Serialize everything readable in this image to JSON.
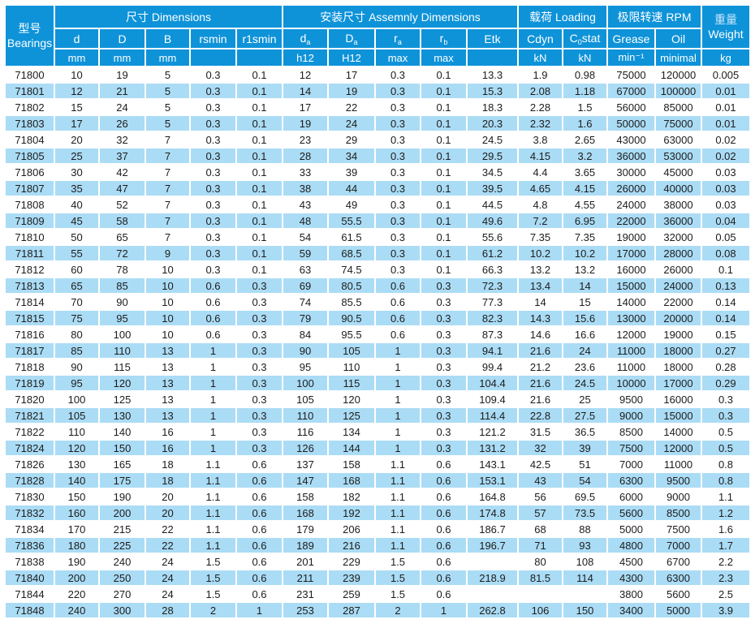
{
  "colors": {
    "header_blue": "#0e93d9",
    "row_alt_blue": "#abdcf5",
    "grid_white": "#ffffff",
    "body_text": "#1c1c1c",
    "header_text": "#ffffff"
  },
  "table": {
    "bearings_header": {
      "zh": "型号",
      "en": "Bearings"
    },
    "groups": [
      {
        "label": "尺寸 Dimensions"
      },
      {
        "label": "安装尺寸 Assemnly Dimensions"
      },
      {
        "label": "载荷 Loading"
      },
      {
        "label": "极限转速 RPM"
      }
    ],
    "weight_header": {
      "zh": "重量",
      "en": "Weight",
      "unit": "kg"
    },
    "columns": [
      {
        "pre": "d"
      },
      {
        "pre": "D"
      },
      {
        "pre": "B"
      },
      {
        "pre": "rsmin"
      },
      {
        "pre": "r1smin"
      },
      {
        "pre": "d",
        "sub": "a"
      },
      {
        "pre": "D",
        "sub": "a"
      },
      {
        "pre": "r",
        "sub": "a"
      },
      {
        "pre": "r",
        "sub": "b"
      },
      {
        "pre": "Etk"
      },
      {
        "pre": "Cdyn"
      },
      {
        "pre": "C",
        "sub": "0",
        "post": "stat"
      },
      {
        "pre": "Grease"
      },
      {
        "pre": "Oil"
      }
    ],
    "units": [
      "mm",
      "mm",
      "mm",
      "",
      "",
      "h12",
      "H12",
      "max",
      "max",
      "",
      "kN",
      "kN",
      "min⁻¹",
      "minimal"
    ],
    "rows": [
      [
        "71800",
        10,
        19,
        5,
        0.3,
        0.1,
        12,
        17,
        0.3,
        0.1,
        13.3,
        1.9,
        0.98,
        75000,
        120000,
        0.005
      ],
      [
        "71801",
        12,
        21,
        5,
        0.3,
        0.1,
        14,
        19,
        0.3,
        0.1,
        15.3,
        2.08,
        1.18,
        67000,
        100000,
        0.01
      ],
      [
        "71802",
        15,
        24,
        5,
        0.3,
        0.1,
        17,
        22,
        0.3,
        0.1,
        18.3,
        2.28,
        1.5,
        56000,
        85000,
        0.01
      ],
      [
        "71803",
        17,
        26,
        5,
        0.3,
        0.1,
        19,
        24,
        0.3,
        0.1,
        20.3,
        2.32,
        1.6,
        50000,
        75000,
        0.01
      ],
      [
        "71804",
        20,
        32,
        7,
        0.3,
        0.1,
        23,
        29,
        0.3,
        0.1,
        24.5,
        3.8,
        2.65,
        43000,
        63000,
        0.02
      ],
      [
        "71805",
        25,
        37,
        7,
        0.3,
        0.1,
        28,
        34,
        0.3,
        0.1,
        29.5,
        4.15,
        3.2,
        36000,
        53000,
        0.02
      ],
      [
        "71806",
        30,
        42,
        7,
        0.3,
        0.1,
        33,
        39,
        0.3,
        0.1,
        34.5,
        4.4,
        3.65,
        30000,
        45000,
        0.03
      ],
      [
        "71807",
        35,
        47,
        7,
        0.3,
        0.1,
        38,
        44,
        0.3,
        0.1,
        39.5,
        4.65,
        4.15,
        26000,
        40000,
        0.03
      ],
      [
        "71808",
        40,
        52,
        7,
        0.3,
        0.1,
        43,
        49,
        0.3,
        0.1,
        44.5,
        4.8,
        4.55,
        24000,
        38000,
        0.03
      ],
      [
        "71809",
        45,
        58,
        7,
        0.3,
        0.1,
        48,
        55.5,
        0.3,
        0.1,
        49.6,
        7.2,
        6.95,
        22000,
        36000,
        0.04
      ],
      [
        "71810",
        50,
        65,
        7,
        0.3,
        0.1,
        54,
        61.5,
        0.3,
        0.1,
        55.6,
        7.35,
        7.35,
        19000,
        32000,
        0.05
      ],
      [
        "71811",
        55,
        72,
        9,
        0.3,
        0.1,
        59,
        68.5,
        0.3,
        0.1,
        61.2,
        10.2,
        10.2,
        17000,
        28000,
        0.08
      ],
      [
        "71812",
        60,
        78,
        10,
        0.3,
        0.1,
        63,
        74.5,
        0.3,
        0.1,
        66.3,
        13.2,
        13.2,
        16000,
        26000,
        0.1
      ],
      [
        "71813",
        65,
        85,
        10,
        0.6,
        0.3,
        69,
        80.5,
        0.6,
        0.3,
        72.3,
        13.4,
        14,
        15000,
        24000,
        0.13
      ],
      [
        "71814",
        70,
        90,
        10,
        0.6,
        0.3,
        74,
        85.5,
        0.6,
        0.3,
        77.3,
        14,
        15,
        14000,
        22000,
        0.14
      ],
      [
        "71815",
        75,
        95,
        10,
        0.6,
        0.3,
        79,
        90.5,
        0.6,
        0.3,
        82.3,
        14.3,
        15.6,
        13000,
        20000,
        0.14
      ],
      [
        "71816",
        80,
        100,
        10,
        0.6,
        0.3,
        84,
        95.5,
        0.6,
        0.3,
        87.3,
        14.6,
        16.6,
        12000,
        19000,
        0.15
      ],
      [
        "71817",
        85,
        110,
        13,
        1,
        0.3,
        90,
        105,
        1,
        0.3,
        94.1,
        21.6,
        24,
        11000,
        18000,
        0.27
      ],
      [
        "71818",
        90,
        115,
        13,
        1,
        0.3,
        95,
        110,
        1,
        0.3,
        99.4,
        21.2,
        23.6,
        11000,
        18000,
        0.28
      ],
      [
        "71819",
        95,
        120,
        13,
        1,
        0.3,
        100,
        115,
        1,
        0.3,
        104.4,
        21.6,
        24.5,
        10000,
        17000,
        0.29
      ],
      [
        "71820",
        100,
        125,
        13,
        1,
        0.3,
        105,
        120,
        1,
        0.3,
        109.4,
        21.6,
        25,
        9500,
        16000,
        0.3
      ],
      [
        "71821",
        105,
        130,
        13,
        1,
        0.3,
        110,
        125,
        1,
        0.3,
        114.4,
        22.8,
        27.5,
        9000,
        15000,
        0.3
      ],
      [
        "71822",
        110,
        140,
        16,
        1,
        0.3,
        116,
        134,
        1,
        0.3,
        121.2,
        31.5,
        36.5,
        8500,
        14000,
        0.5
      ],
      [
        "71824",
        120,
        150,
        16,
        1,
        0.3,
        126,
        144,
        1,
        0.3,
        131.2,
        32,
        39,
        7500,
        12000,
        0.5
      ],
      [
        "71826",
        130,
        165,
        18,
        1.1,
        0.6,
        137,
        158,
        1.1,
        0.6,
        143.1,
        42.5,
        51,
        7000,
        11000,
        0.8
      ],
      [
        "71828",
        140,
        175,
        18,
        1.1,
        0.6,
        147,
        168,
        1.1,
        0.6,
        153.1,
        43,
        54,
        6300,
        9500,
        0.8
      ],
      [
        "71830",
        150,
        190,
        20,
        1.1,
        0.6,
        158,
        182,
        1.1,
        0.6,
        164.8,
        56,
        69.5,
        6000,
        9000,
        1.1
      ],
      [
        "71832",
        160,
        200,
        20,
        1.1,
        0.6,
        168,
        192,
        1.1,
        0.6,
        174.8,
        57,
        73.5,
        5600,
        8500,
        1.2
      ],
      [
        "71834",
        170,
        215,
        22,
        1.1,
        0.6,
        179,
        206,
        1.1,
        0.6,
        186.7,
        68,
        88,
        5000,
        7500,
        1.6
      ],
      [
        "71836",
        180,
        225,
        22,
        1.1,
        0.6,
        189,
        216,
        1.1,
        0.6,
        196.7,
        71,
        93,
        4800,
        7000,
        1.7
      ],
      [
        "71838",
        190,
        240,
        24,
        1.5,
        0.6,
        201,
        229,
        1.5,
        0.6,
        "",
        80,
        108,
        4500,
        6700,
        2.2
      ],
      [
        "71840",
        200,
        250,
        24,
        1.5,
        0.6,
        211,
        239,
        1.5,
        0.6,
        218.9,
        81.5,
        114,
        4300,
        6300,
        2.3
      ],
      [
        "71844",
        220,
        270,
        24,
        1.5,
        0.6,
        231,
        259,
        1.5,
        0.6,
        "",
        "",
        "",
        3800,
        5600,
        2.5
      ],
      [
        "71848",
        240,
        300,
        28,
        2,
        1,
        253,
        287,
        2,
        1,
        262.8,
        106,
        150,
        3400,
        5000,
        3.9
      ]
    ]
  }
}
